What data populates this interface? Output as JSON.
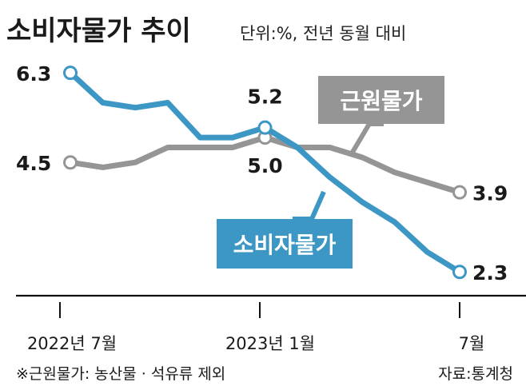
{
  "header": {
    "title": "소비자물가 추이",
    "unit": "단위:%, 전년 동월 대비"
  },
  "footer": {
    "note": "※근원물가: 농산물 · 석유류 제외",
    "source": "자료:통계청"
  },
  "colors": {
    "cpi": "#3d97c4",
    "core": "#959595",
    "axis": "#111111",
    "text": "#1a1a1a"
  },
  "chart_data": {
    "type": "line",
    "title": "소비자물가 추이",
    "subtitle": "단위:%, 전년 동월 대비",
    "x_ticks": [
      "2022년 7월",
      "2023년 1월",
      "7월"
    ],
    "x": [
      "2022-07",
      "2022-08",
      "2022-09",
      "2022-10",
      "2022-11",
      "2022-12",
      "2023-01",
      "2023-02",
      "2023-03",
      "2023-04",
      "2023-05",
      "2023-06",
      "2023-07"
    ],
    "series": [
      {
        "name": "소비자물가",
        "values": [
          6.3,
          5.7,
          5.6,
          5.7,
          5.0,
          5.0,
          5.2,
          4.8,
          4.2,
          3.7,
          3.3,
          2.7,
          2.3
        ],
        "labels": [
          {
            "x": "2022-07",
            "text": "6.3"
          },
          {
            "x": "2023-01",
            "text": "5.2"
          },
          {
            "x": "2023-07",
            "text": "2.3"
          }
        ]
      },
      {
        "name": "근원물가",
        "values": [
          4.5,
          4.4,
          4.5,
          4.8,
          4.8,
          4.8,
          5.0,
          4.8,
          4.8,
          4.6,
          4.3,
          4.1,
          3.9
        ],
        "labels": [
          {
            "x": "2022-07",
            "text": "4.5"
          },
          {
            "x": "2023-01",
            "text": "5.0"
          },
          {
            "x": "2023-07",
            "text": "3.9"
          }
        ]
      }
    ],
    "ylim": [
      1.5,
      6.8
    ],
    "grid": false,
    "legend": "callout-labels"
  }
}
